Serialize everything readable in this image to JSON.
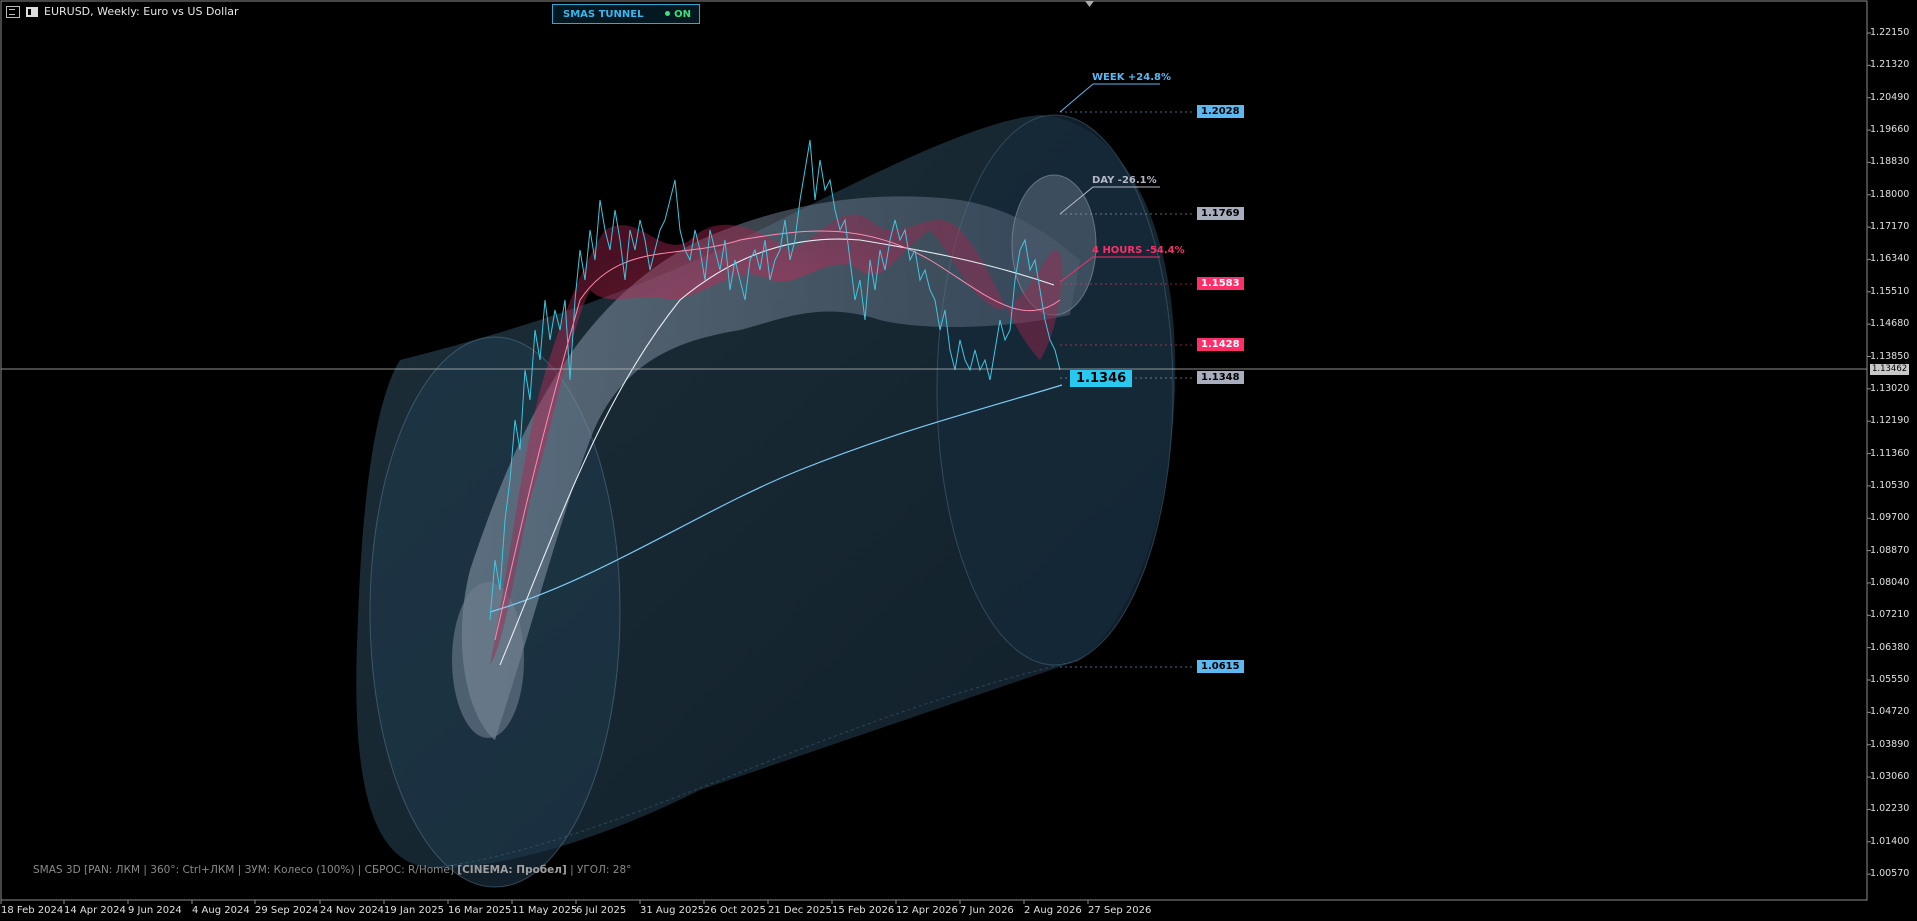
{
  "window": {
    "symbol_title": "EURUSD, Weekly:  Euro vs US Dollar"
  },
  "indicator_badge": {
    "label": "SMAS TUNNEL",
    "state": "ON",
    "accent": "#39b7ee",
    "state_color": "#3ee07a"
  },
  "price_axis": {
    "labels": [
      "1.22150",
      "1.21320",
      "1.20490",
      "1.19660",
      "1.18830",
      "1.18000",
      "1.17170",
      "1.16340",
      "1.15510",
      "1.14680",
      "1.13850",
      "1.13020",
      "1.12190",
      "1.11360",
      "1.10530",
      "1.09700",
      "1.08870",
      "1.08040",
      "1.07210",
      "1.06380",
      "1.05550",
      "1.04720",
      "1.03890",
      "1.03060",
      "1.02230",
      "1.01400",
      "1.00570"
    ],
    "current_price": "1.13462"
  },
  "time_axis": {
    "labels": [
      "18 Feb 2024",
      "14 Apr 2024",
      "9 Jun 2024",
      "4 Aug 2024",
      "29 Sep 2024",
      "24 Nov 2024",
      "19 Jan 2025",
      "16 Mar 2025",
      "11 May 2025",
      "6 Jul 2025",
      "31 Aug 2025",
      "26 Oct 2025",
      "21 Dec 2025",
      "15 Feb 2026",
      "12 Apr 2026",
      "7 Jun 2026",
      "2 Aug 2026",
      "27 Sep 2026"
    ]
  },
  "tunnel_labels": [
    {
      "text": "WEEK +24.8%",
      "color": "#5bb8f0"
    },
    {
      "text": "DAY -26.1%",
      "color": "#b4b8c8"
    },
    {
      "text": "4 HOURS -54.4%",
      "color": "#ff2d68"
    }
  ],
  "price_tags": [
    {
      "value": "1.2028",
      "bg": "#5bb8f0",
      "fg": "#000000"
    },
    {
      "value": "1.1769",
      "bg": "#a8aebd",
      "fg": "#000000"
    },
    {
      "value": "1.1583",
      "bg": "#ff2d68",
      "fg": "#ffffff"
    },
    {
      "value": "1.1428",
      "bg": "#ff2d68",
      "fg": "#ffffff"
    },
    {
      "value": "1.1348",
      "bg": "#a8aebd",
      "fg": "#000000"
    },
    {
      "value": "1.0615",
      "bg": "#5bb8f0",
      "fg": "#000000"
    }
  ],
  "bid_tag": "1.1346",
  "help": {
    "prefix": "SMAS 3D [PAN: ЛКМ | 360°: Ctrl+ЛКМ | ЗУМ: Колесо (100%) | СБРОС: R/Home]",
    "cinema": "[CINEMA: Пробел]",
    "suffix": "| УГОЛ: 28°"
  }
}
